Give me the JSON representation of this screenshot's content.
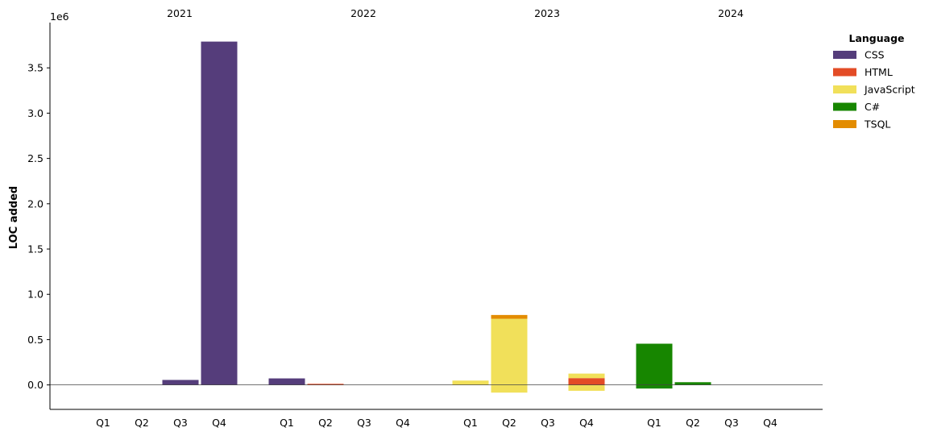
{
  "chart_data": {
    "type": "bar",
    "stacked": true,
    "ylabel": "LOC added",
    "y_offset_text": "1e6",
    "ylim": [
      -270000,
      4000000
    ],
    "yticks": [
      0.0,
      0.5,
      1.0,
      1.5,
      2.0,
      2.5,
      3.0,
      3.5
    ],
    "ytick_labels": [
      "0.0",
      "0.5",
      "1.0",
      "1.5",
      "2.0",
      "2.5",
      "3.0",
      "3.5"
    ],
    "year_labels": [
      "2021",
      "2022",
      "2023",
      "2024"
    ],
    "quarter_labels": [
      "Q1",
      "Q2",
      "Q3",
      "Q4"
    ],
    "categories": [
      "2021 Q1",
      "2021 Q2",
      "2021 Q3",
      "2021 Q4",
      "2022 Q1",
      "2022 Q2",
      "2022 Q3",
      "2022 Q4",
      "2023 Q1",
      "2023 Q2",
      "2023 Q3",
      "2023 Q4",
      "2024 Q1",
      "2024 Q2",
      "2024 Q3",
      "2024 Q4"
    ],
    "legend": {
      "title": "Language",
      "position": "upper-right-outside"
    },
    "series": [
      {
        "name": "CSS",
        "color": "#553d7b",
        "values": [
          0,
          0,
          55000,
          3790000,
          72000,
          0,
          0,
          0,
          0,
          0,
          0,
          0,
          0,
          0,
          0,
          0
        ]
      },
      {
        "name": "HTML",
        "color": "#e34c26",
        "values": [
          0,
          0,
          0,
          0,
          0,
          12000,
          0,
          0,
          0,
          0,
          0,
          75000,
          0,
          0,
          0,
          0
        ]
      },
      {
        "name": "JavaScript",
        "color": "#f1e05a",
        "values": [
          0,
          0,
          0,
          0,
          0,
          0,
          0,
          0,
          48000,
          730000,
          0,
          50000,
          0,
          0,
          0,
          0
        ],
        "negative_values": [
          0,
          0,
          0,
          0,
          0,
          0,
          0,
          0,
          0,
          -85000,
          0,
          -65000,
          0,
          0,
          0,
          0
        ]
      },
      {
        "name": "C#",
        "color": "#178600",
        "values": [
          0,
          0,
          0,
          0,
          0,
          0,
          0,
          0,
          0,
          0,
          0,
          0,
          455000,
          30000,
          0,
          0
        ],
        "negative_values": [
          0,
          0,
          0,
          0,
          0,
          0,
          0,
          0,
          0,
          0,
          0,
          0,
          -40000,
          0,
          0,
          0
        ]
      },
      {
        "name": "TSQL",
        "color": "#e38c00",
        "values": [
          0,
          0,
          0,
          0,
          0,
          0,
          0,
          0,
          0,
          42000,
          0,
          0,
          0,
          0,
          0,
          0
        ]
      }
    ]
  }
}
